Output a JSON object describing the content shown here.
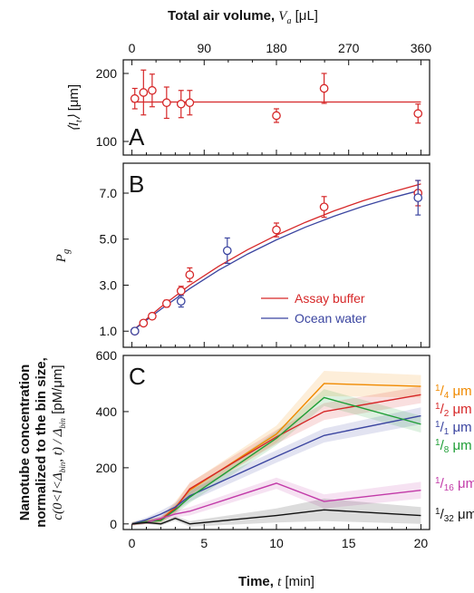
{
  "top_axis": {
    "label_main": "Total air volume,",
    "label_symbol": "V",
    "label_sub": "a",
    "label_unit": " [μL]",
    "ticks": [
      "0",
      "90",
      "180",
      "270",
      "360"
    ],
    "tick_values": [
      0,
      90,
      180,
      270,
      360
    ],
    "range": [
      0,
      360
    ]
  },
  "x_axis": {
    "label_main": "Time,",
    "label_symbol": "t",
    "label_unit": " [min]",
    "ticks": [
      "0",
      "5",
      "10",
      "15",
      "20"
    ],
    "tick_values": [
      0,
      5,
      10,
      15,
      20
    ],
    "range": [
      -0.6,
      20.6
    ]
  },
  "colors": {
    "red": "#d62728",
    "blue": "#3b45a0",
    "orange": "#f08a00",
    "green": "#1f9e36",
    "magenta": "#c23aa8",
    "black": "#111111",
    "frame": "#111111"
  },
  "chart_data": [
    {
      "panel": "A",
      "type": "scatter",
      "ylabel_symbol": "l",
      "ylabel_sub": "t",
      "ylabel_unit": "[μm]",
      "yticks": [
        "100",
        "200"
      ],
      "ytick_values": [
        100,
        200
      ],
      "ylim": [
        80,
        220
      ],
      "series": [
        {
          "color": "red",
          "x": [
            0.2,
            0.8,
            1.4,
            2.4,
            3.4,
            4.0,
            10.0,
            13.3,
            19.8
          ],
          "y": [
            163,
            172,
            175,
            157,
            155,
            157,
            138,
            178,
            141
          ],
          "err": [
            15,
            33,
            24,
            23,
            20,
            18,
            10,
            22,
            14
          ]
        }
      ],
      "fit_line": {
        "color": "red",
        "y": 158
      }
    },
    {
      "panel": "B",
      "type": "scatter",
      "ylabel_symbol": "P",
      "ylabel_sub": "g",
      "yticks": [
        "1.0",
        "3.0",
        "5.0",
        "7.0"
      ],
      "ytick_values": [
        1,
        3,
        5,
        7
      ],
      "ylim": [
        0.3,
        8.3
      ],
      "series": [
        {
          "name": "Assay buffer",
          "color": "red",
          "x": [
            0.2,
            0.8,
            1.4,
            2.4,
            3.4,
            4.0,
            10.0,
            13.3,
            19.8
          ],
          "y": [
            1.0,
            1.35,
            1.65,
            2.2,
            2.75,
            3.45,
            5.4,
            6.4,
            7.0
          ],
          "err": [
            0.05,
            0.1,
            0.12,
            0.15,
            0.2,
            0.3,
            0.3,
            0.45,
            0.55
          ],
          "fit": {
            "x": [
              0,
              2,
              4,
              6,
              8,
              10,
              12,
              14,
              16,
              18,
              20
            ],
            "y": [
              1.0,
              2.05,
              3.0,
              3.82,
              4.54,
              5.17,
              5.73,
              6.23,
              6.67,
              7.05,
              7.4
            ]
          }
        },
        {
          "name": "Ocean water",
          "color": "blue",
          "x": [
            0.2,
            3.4,
            6.6,
            19.8
          ],
          "y": [
            1.0,
            2.3,
            4.5,
            6.8
          ],
          "err": [
            0.05,
            0.25,
            0.55,
            0.75
          ],
          "fit": {
            "x": [
              0,
              2,
              4,
              6,
              8,
              10,
              12,
              14,
              16,
              18,
              20
            ],
            "y": [
              1.0,
              1.95,
              2.85,
              3.65,
              4.35,
              4.97,
              5.52,
              6.0,
              6.43,
              6.8,
              7.13
            ]
          }
        }
      ],
      "legend": [
        "Assay buffer",
        "Ocean water"
      ]
    },
    {
      "panel": "C",
      "type": "line",
      "ylabel_lines": [
        "Nanotube concentration",
        "normalized to the bin size,"
      ],
      "ylabel_formula_prefix": "c(0<l<Δ",
      "ylabel_formula_sub": "bin",
      "ylabel_formula_mid": ", t) / Δ",
      "ylabel_formula_sub2": "bin",
      "ylabel_formula_unit": " [pM/μm]",
      "yticks": [
        "0",
        "200",
        "400",
        "600"
      ],
      "ytick_values": [
        0,
        200,
        400,
        600
      ],
      "ylim": [
        -20,
        600
      ],
      "x": [
        0,
        1,
        2,
        3,
        4,
        10,
        13.3,
        20
      ],
      "series": [
        {
          "name_num": "1",
          "name_den": "4",
          "unit": " μm",
          "color": "orange",
          "values": [
            0,
            8,
            15,
            60,
            120,
            320,
            500,
            490
          ],
          "band": [
            6,
            8,
            10,
            20,
            25,
            30,
            45,
            40
          ]
        },
        {
          "name_num": "1",
          "name_den": "2",
          "unit": " μm",
          "color": "red",
          "values": [
            0,
            8,
            15,
            55,
            125,
            310,
            400,
            460
          ],
          "band": [
            6,
            8,
            10,
            18,
            22,
            25,
            30,
            30
          ]
        },
        {
          "name_num": "1",
          "name_den": "1",
          "unit": " μm",
          "color": "blue",
          "values": [
            0,
            15,
            35,
            60,
            100,
            240,
            315,
            385
          ],
          "band": [
            6,
            8,
            12,
            15,
            20,
            22,
            25,
            30
          ]
        },
        {
          "name_num": "1",
          "name_den": "8",
          "unit": " μm",
          "color": "green",
          "values": [
            0,
            8,
            12,
            50,
            95,
            305,
            450,
            355
          ],
          "band": [
            6,
            8,
            10,
            15,
            20,
            25,
            30,
            30
          ]
        },
        {
          "name_num": "1",
          "name_den": "16",
          "unit": " μm",
          "color": "magenta",
          "values": [
            0,
            5,
            20,
            35,
            45,
            145,
            80,
            120
          ],
          "band": [
            4,
            6,
            8,
            12,
            15,
            20,
            25,
            30
          ]
        },
        {
          "name_num": "1",
          "name_den": "32",
          "unit": " μm",
          "color": "black",
          "values": [
            0,
            5,
            0,
            20,
            0,
            30,
            50,
            30
          ],
          "band": [
            4,
            5,
            6,
            8,
            10,
            25,
            40,
            30
          ]
        }
      ]
    }
  ]
}
